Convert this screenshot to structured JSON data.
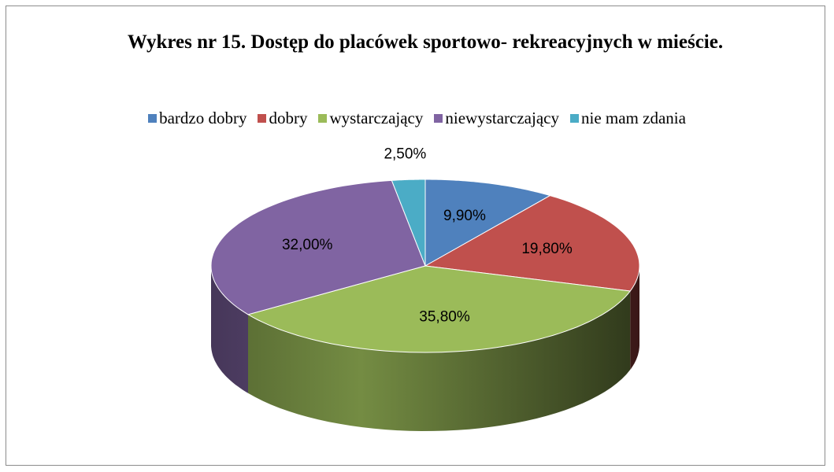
{
  "chart_data": {
    "type": "pie",
    "title": "Wykres nr 15. Dostęp do placówek sportowo- rekreacyjnych w mieście.",
    "categories": [
      "bardzo dobry",
      "dobry",
      "wystarczający",
      "niewystarczający",
      "nie mam zdania"
    ],
    "values": [
      9.9,
      19.8,
      35.8,
      32.0,
      2.5
    ],
    "value_labels": [
      "9,90%",
      "19,80%",
      "35,80%",
      "32,00%",
      "2,50%"
    ],
    "colors": [
      "#4f81bd",
      "#c0504d",
      "#9bbb59",
      "#8064a2",
      "#4bacc6"
    ],
    "legend": "top"
  }
}
